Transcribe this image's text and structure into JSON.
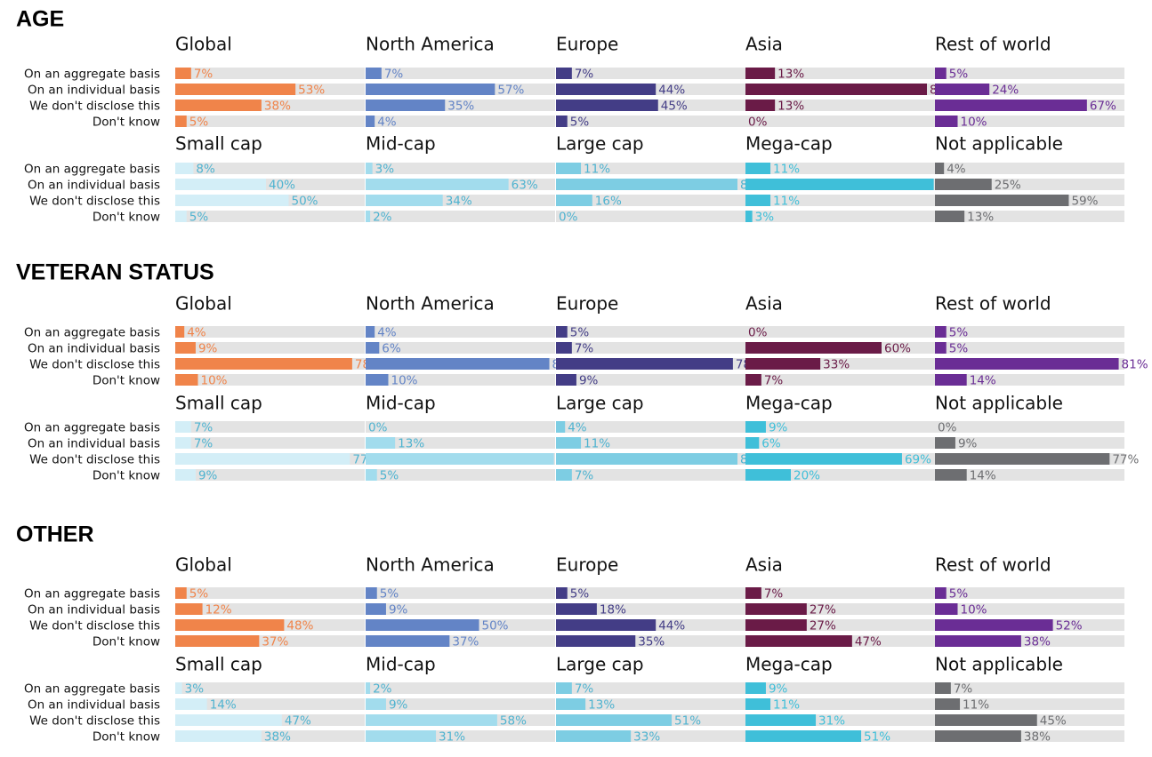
{
  "colors": {
    "track": "#e3e3e3",
    "Global": "#f0844a",
    "North America": "#6384c6",
    "Europe": "#433d86",
    "Asia": "#6a1b47",
    "Rest of world": "#6a2d95",
    "Small cap": "#d3eef7",
    "Mid-cap": "#a2dced",
    "Large cap": "#7dcde3",
    "Mega-cap": "#3fbfd9",
    "Not applicable": "#6d6e71"
  },
  "label_colors": {
    "Global": "#f0844a",
    "North America": "#6384c6",
    "Europe": "#433d86",
    "Asia": "#6a1b47",
    "Rest of world": "#6a2d95",
    "Small cap": "#4fb3d0",
    "Mid-cap": "#4fb3d0",
    "Large cap": "#4fb3d0",
    "Mega-cap": "#3fbfd9",
    "Not applicable": "#6d6e71"
  },
  "chart_data": {
    "type": "bar",
    "categories": [
      "On an aggregate basis",
      "On an individual basis",
      "We don't disclose this",
      "Don't know"
    ],
    "xlim": [
      0,
      100
    ],
    "unit": "%",
    "sections": [
      {
        "title": "AGE",
        "rows": [
          {
            "panels": [
              {
                "name": "Global",
                "values": [
                  7,
                  53,
                  38,
                  5
                ]
              },
              {
                "name": "North America",
                "values": [
                  7,
                  57,
                  35,
                  4
                ]
              },
              {
                "name": "Europe",
                "values": [
                  7,
                  44,
                  45,
                  5
                ]
              },
              {
                "name": "Asia",
                "values": [
                  13,
                  80,
                  13,
                  0
                ]
              },
              {
                "name": "Rest of world",
                "values": [
                  5,
                  24,
                  67,
                  10
                ]
              }
            ]
          },
          {
            "panels": [
              {
                "name": "Small cap",
                "values": [
                  8,
                  40,
                  50,
                  5
                ]
              },
              {
                "name": "Mid-cap",
                "values": [
                  3,
                  63,
                  34,
                  2
                ]
              },
              {
                "name": "Large cap",
                "values": [
                  11,
                  80,
                  16,
                  0
                ]
              },
              {
                "name": "Mega-cap",
                "values": [
                  11,
                  83,
                  11,
                  3
                ]
              },
              {
                "name": "Not applicable",
                "values": [
                  4,
                  25,
                  59,
                  13
                ]
              }
            ]
          }
        ]
      },
      {
        "title": "VETERAN STATUS",
        "rows": [
          {
            "panels": [
              {
                "name": "Global",
                "values": [
                  4,
                  9,
                  78,
                  10
                ]
              },
              {
                "name": "North America",
                "values": [
                  4,
                  6,
                  81,
                  10
                ]
              },
              {
                "name": "Europe",
                "values": [
                  5,
                  7,
                  78,
                  9
                ]
              },
              {
                "name": "Asia",
                "values": [
                  0,
                  60,
                  33,
                  7
                ]
              },
              {
                "name": "Rest of world",
                "values": [
                  5,
                  5,
                  81,
                  14
                ]
              }
            ]
          },
          {
            "panels": [
              {
                "name": "Small cap",
                "values": [
                  7,
                  7,
                  77,
                  9
                ]
              },
              {
                "name": "Mid-cap",
                "values": [
                  0,
                  13,
                  83,
                  5
                ]
              },
              {
                "name": "Large cap",
                "values": [
                  4,
                  11,
                  80,
                  7
                ]
              },
              {
                "name": "Mega-cap",
                "values": [
                  9,
                  6,
                  69,
                  20
                ]
              },
              {
                "name": "Not applicable",
                "values": [
                  0,
                  9,
                  77,
                  14
                ]
              }
            ]
          }
        ]
      },
      {
        "title": "OTHER",
        "rows": [
          {
            "panels": [
              {
                "name": "Global",
                "values": [
                  5,
                  12,
                  48,
                  37
                ]
              },
              {
                "name": "North America",
                "values": [
                  5,
                  9,
                  50,
                  37
                ]
              },
              {
                "name": "Europe",
                "values": [
                  5,
                  18,
                  44,
                  35
                ]
              },
              {
                "name": "Asia",
                "values": [
                  7,
                  27,
                  27,
                  47
                ]
              },
              {
                "name": "Rest of world",
                "values": [
                  5,
                  10,
                  52,
                  38
                ]
              }
            ]
          },
          {
            "panels": [
              {
                "name": "Small cap",
                "values": [
                  3,
                  14,
                  47,
                  38
                ]
              },
              {
                "name": "Mid-cap",
                "values": [
                  2,
                  9,
                  58,
                  31
                ]
              },
              {
                "name": "Large cap",
                "values": [
                  7,
                  13,
                  51,
                  33
                ]
              },
              {
                "name": "Mega-cap",
                "values": [
                  9,
                  11,
                  31,
                  51
                ]
              },
              {
                "name": "Not applicable",
                "values": [
                  7,
                  11,
                  45,
                  38
                ]
              }
            ]
          }
        ]
      }
    ]
  }
}
